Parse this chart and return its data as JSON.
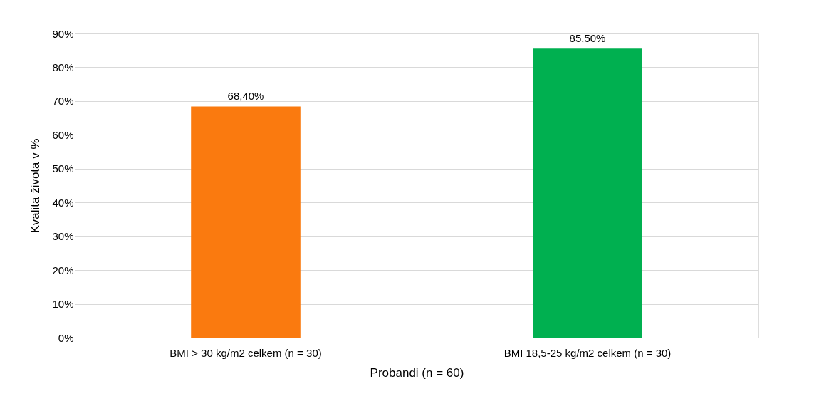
{
  "chart_data": {
    "type": "bar",
    "categories": [
      "BMI > 30 kg/m2 celkem (n = 30)",
      "BMI 18,5-25 kg/m2 celkem (n = 30)"
    ],
    "values": [
      68.4,
      85.5
    ],
    "colors": [
      "#fa7a0f",
      "#00b050"
    ],
    "value_labels": [
      "68,40%",
      "85,50%"
    ],
    "xlabel": "Probandi (n = 60)",
    "ylabel": "Kvalita života v %",
    "ylim": [
      0,
      90
    ],
    "yticks": [
      {
        "value": 0,
        "label": "0%"
      },
      {
        "value": 10,
        "label": "10%"
      },
      {
        "value": 20,
        "label": "20%"
      },
      {
        "value": 30,
        "label": "30%"
      },
      {
        "value": 40,
        "label": "40%"
      },
      {
        "value": 50,
        "label": "50%"
      },
      {
        "value": 60,
        "label": "60%"
      },
      {
        "value": 70,
        "label": "70%"
      },
      {
        "value": 80,
        "label": "80%"
      },
      {
        "value": 90,
        "label": "90%"
      }
    ],
    "grid": "y"
  }
}
